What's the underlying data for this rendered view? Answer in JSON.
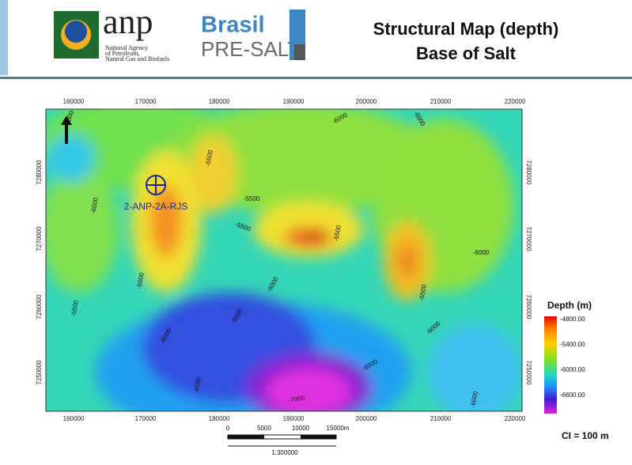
{
  "header": {
    "logo_text": "anp",
    "logo_subtitle": [
      "National Agency",
      "of Petroleum,",
      "Natural Gas and Biofuels"
    ],
    "brand": "Brasil",
    "brand_sub": "PRE-SALT",
    "title": [
      "Structural Map (depth)",
      "Base of Salt"
    ]
  },
  "map": {
    "x_ticks": [
      "160000",
      "170000",
      "180000",
      "190000",
      "200000",
      "210000",
      "220000"
    ],
    "y_ticks": [
      "7280000",
      "7270000",
      "7260000",
      "7250000"
    ],
    "well": "2-ANP-2A-RJS",
    "contour_labels": [
      "-6000",
      "-5500",
      "-5500",
      "-5500",
      "-6000",
      "-5500",
      "-5500",
      "-6000",
      "-6000",
      "-6000",
      "-6000",
      "-6000",
      "-5500",
      "-5500",
      "-6000",
      "-6000",
      "-6000",
      "-6500",
      "-6500",
      "-7000"
    ]
  },
  "legend": {
    "title": "Depth (m)",
    "labels": [
      "-4800.00",
      "-5400.00",
      "-6000.00",
      "-6600.00"
    ]
  },
  "scale_bar": {
    "labels": [
      "0",
      "5000",
      "10000",
      "15000m"
    ],
    "ratio": "1:300000"
  },
  "contour_interval": "CI = 100 m"
}
